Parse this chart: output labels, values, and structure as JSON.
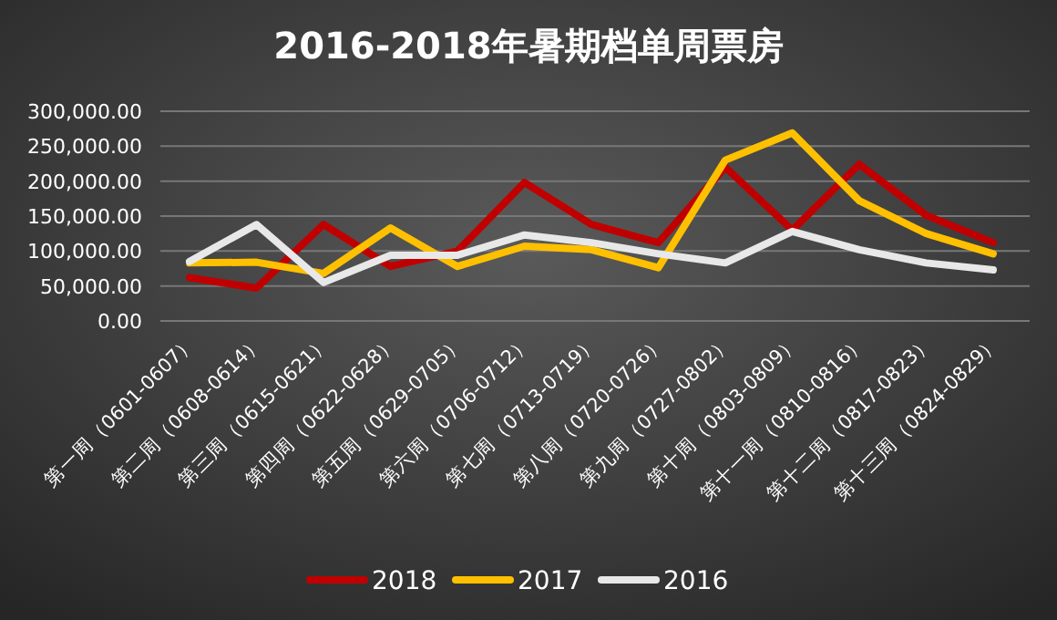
{
  "chart_data": {
    "type": "line",
    "title": "2016-2018年暑期档单周票房",
    "categories": [
      "第一周（0601-0607）",
      "第二周（0608-0614）",
      "第三周（0615-0621）",
      "第四周（0622-0628）",
      "第五周（0629-0705）",
      "第六周（0706-0712）",
      "第七周（0713-0719）",
      "第八周（0720-0726）",
      "第九周（0727-0802）",
      "第十周（0803-0809）",
      "第十一周（0810-0816）",
      "第十二周（0817-0823）",
      "第十三周（0824-0829）"
    ],
    "series": [
      {
        "name": "2018",
        "color": "#c00000",
        "values": [
          62000,
          47000,
          138000,
          78000,
          100000,
          198000,
          138000,
          112000,
          220000,
          130000,
          224000,
          151000,
          112000
        ]
      },
      {
        "name": "2017",
        "color": "#ffc000",
        "values": [
          83000,
          84000,
          68000,
          133000,
          78000,
          107000,
          102000,
          76000,
          230000,
          269000,
          172000,
          125000,
          96000
        ]
      },
      {
        "name": "2016",
        "color": "#e8e8e8",
        "values": [
          85000,
          138000,
          55000,
          94000,
          94000,
          123000,
          112000,
          96000,
          83000,
          128000,
          102000,
          83000,
          73000
        ]
      }
    ],
    "ylim": [
      0,
      300000
    ],
    "yticks": [
      {
        "value": 0,
        "label": "0.00"
      },
      {
        "value": 50000,
        "label": "50,000.00"
      },
      {
        "value": 100000,
        "label": "100,000.00"
      },
      {
        "value": 150000,
        "label": "150,000.00"
      },
      {
        "value": 200000,
        "label": "200,000.00"
      },
      {
        "value": 250000,
        "label": "250,000.00"
      },
      {
        "value": 300000,
        "label": "300,000.00"
      }
    ],
    "grid": "y",
    "legend": "bottom"
  }
}
